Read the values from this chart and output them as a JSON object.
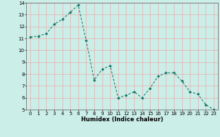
{
  "x": [
    0,
    1,
    2,
    3,
    4,
    5,
    6,
    7,
    8,
    9,
    10,
    11,
    12,
    13,
    14,
    15,
    16,
    17,
    18,
    19,
    20,
    21,
    22,
    23
  ],
  "y": [
    11.1,
    11.2,
    11.4,
    12.2,
    12.6,
    13.2,
    13.8,
    10.8,
    7.5,
    8.4,
    8.7,
    6.0,
    6.2,
    6.5,
    6.0,
    6.8,
    7.8,
    8.1,
    8.1,
    7.4,
    6.5,
    6.3,
    5.4,
    5.0
  ],
  "line_color": "#1a7a6a",
  "marker": "D",
  "markersize": 1.8,
  "linewidth": 0.8,
  "xlabel": "Humidex (Indice chaleur)",
  "xlabel_fontsize": 6.0,
  "bg_color": "#cceee8",
  "grid_color_major": "#e8aaaa",
  "grid_color_minor": "#e8aaaa",
  "plot_bg": "#cceee8",
  "xlim": [
    -0.5,
    23.5
  ],
  "ylim": [
    5,
    14
  ],
  "yticks": [
    5,
    6,
    7,
    8,
    9,
    10,
    11,
    12,
    13,
    14
  ],
  "xticks": [
    0,
    1,
    2,
    3,
    4,
    5,
    6,
    7,
    8,
    9,
    10,
    11,
    12,
    13,
    14,
    15,
    16,
    17,
    18,
    19,
    20,
    21,
    22,
    23
  ],
  "tick_fontsize": 5.0,
  "figure_bg": "#cceee8"
}
